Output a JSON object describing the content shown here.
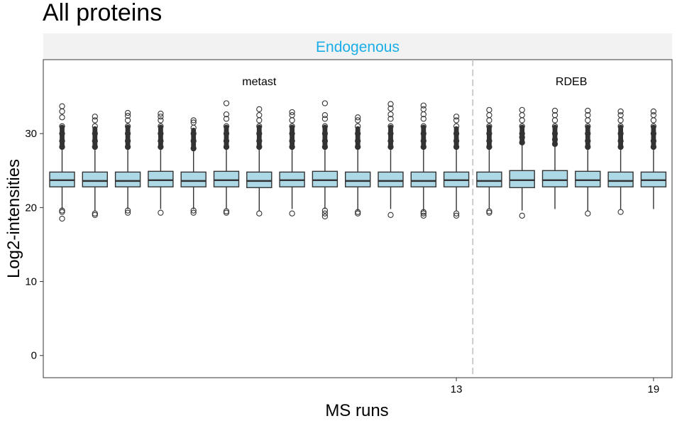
{
  "title": "All proteins",
  "facet_label": "Endogenous",
  "colors": {
    "facet_label_text": "#1aaee8",
    "strip_background": "#f2f2f2",
    "box_fill": "#add8e6",
    "box_stroke": "#333333",
    "divider": "#c0c0c0"
  },
  "chart_data": {
    "type": "boxplot",
    "title": "All proteins",
    "facet": "Endogenous",
    "xlabel": "MS runs",
    "ylabel": "Log2-intensities",
    "ylim": [
      -3,
      40
    ],
    "yticks": [
      0,
      10,
      20,
      30
    ],
    "xtick_labels": [
      {
        "run": 13,
        "label": "13"
      },
      {
        "run": 19,
        "label": "19"
      }
    ],
    "groups": [
      {
        "label": "metast",
        "runs": [
          1,
          13
        ]
      },
      {
        "label": "RDEB",
        "runs": [
          14,
          19
        ]
      }
    ],
    "group_divider_after_run": 13.5,
    "grid": false,
    "runs": [
      {
        "run": 1,
        "q1": 22.8,
        "median": 23.7,
        "q3": 24.8,
        "whisker_low": 19.8,
        "whisker_high": 27.8,
        "outliers_low": [
          19.4,
          19.6,
          18.5
        ],
        "outliers_high": [
          28.2,
          29.0,
          30.0,
          31.0,
          32.2,
          33.0,
          33.7
        ]
      },
      {
        "run": 2,
        "q1": 22.8,
        "median": 23.6,
        "q3": 24.8,
        "whisker_low": 19.6,
        "whisker_high": 27.8,
        "outliers_low": [
          19.2,
          19.0
        ],
        "outliers_high": [
          28.2,
          29.0,
          30.0,
          31.0,
          31.8,
          32.3
        ]
      },
      {
        "run": 3,
        "q1": 22.8,
        "median": 23.6,
        "q3": 24.8,
        "whisker_low": 19.8,
        "whisker_high": 27.8,
        "outliers_low": [
          19.6,
          19.3
        ],
        "outliers_high": [
          28.2,
          29.0,
          30.0,
          31.0,
          31.8,
          32.4,
          32.8
        ]
      },
      {
        "run": 4,
        "q1": 22.8,
        "median": 23.7,
        "q3": 24.9,
        "whisker_low": 19.8,
        "whisker_high": 27.8,
        "outliers_low": [
          19.3
        ],
        "outliers_high": [
          28.2,
          29.0,
          30.0,
          31.0,
          31.8,
          32.3,
          32.7
        ]
      },
      {
        "run": 5,
        "q1": 22.8,
        "median": 23.6,
        "q3": 24.8,
        "whisker_low": 19.8,
        "whisker_high": 27.6,
        "outliers_low": [
          19.6,
          19.3
        ],
        "outliers_high": [
          28.0,
          29.0,
          30.0,
          30.8,
          31.5,
          31.8
        ]
      },
      {
        "run": 6,
        "q1": 22.8,
        "median": 23.7,
        "q3": 24.9,
        "whisker_low": 19.8,
        "whisker_high": 27.8,
        "outliers_low": [
          19.5,
          19.3
        ],
        "outliers_high": [
          28.2,
          29.0,
          30.0,
          31.0,
          32.0,
          32.6,
          34.1
        ]
      },
      {
        "run": 7,
        "q1": 22.7,
        "median": 23.6,
        "q3": 24.8,
        "whisker_low": 19.6,
        "whisker_high": 27.8,
        "outliers_low": [
          19.2
        ],
        "outliers_high": [
          28.2,
          29.0,
          30.0,
          31.0,
          31.8,
          32.5,
          33.3
        ]
      },
      {
        "run": 8,
        "q1": 22.8,
        "median": 23.7,
        "q3": 24.8,
        "whisker_low": 19.8,
        "whisker_high": 27.8,
        "outliers_low": [
          19.2
        ],
        "outliers_high": [
          28.2,
          29.0,
          30.0,
          31.0,
          31.8,
          32.5,
          32.9
        ]
      },
      {
        "run": 9,
        "q1": 22.8,
        "median": 23.7,
        "q3": 24.9,
        "whisker_low": 19.8,
        "whisker_high": 27.8,
        "outliers_low": [
          19.6,
          19.2,
          18.8
        ],
        "outliers_high": [
          28.2,
          29.0,
          30.0,
          31.0,
          32.0,
          32.5,
          34.1
        ]
      },
      {
        "run": 10,
        "q1": 22.8,
        "median": 23.6,
        "q3": 24.8,
        "whisker_low": 19.6,
        "whisker_high": 27.8,
        "outliers_low": [
          19.4,
          19.2
        ],
        "outliers_high": [
          28.2,
          29.0,
          30.0,
          31.0,
          31.8,
          32.2
        ]
      },
      {
        "run": 11,
        "q1": 22.8,
        "median": 23.6,
        "q3": 24.8,
        "whisker_low": 19.8,
        "whisker_high": 27.8,
        "outliers_low": [
          19.0
        ],
        "outliers_high": [
          28.2,
          29.0,
          30.0,
          31.0,
          32.0,
          32.6,
          33.4,
          34.0
        ]
      },
      {
        "run": 12,
        "q1": 22.8,
        "median": 23.6,
        "q3": 24.8,
        "whisker_low": 19.6,
        "whisker_high": 27.8,
        "outliers_low": [
          19.4,
          19.2,
          18.9
        ],
        "outliers_high": [
          28.2,
          29.0,
          30.0,
          31.0,
          32.0,
          32.6,
          33.3,
          33.8
        ]
      },
      {
        "run": 13,
        "q1": 22.8,
        "median": 23.7,
        "q3": 24.8,
        "whisker_low": 19.6,
        "whisker_high": 27.8,
        "outliers_low": [
          19.2,
          18.9
        ],
        "outliers_high": [
          28.2,
          29.0,
          30.0,
          31.0,
          31.8,
          32.3
        ]
      },
      {
        "run": 14,
        "q1": 22.8,
        "median": 23.6,
        "q3": 24.8,
        "whisker_low": 19.8,
        "whisker_high": 27.8,
        "outliers_low": [
          19.5,
          19.3
        ],
        "outliers_high": [
          28.2,
          29.0,
          30.0,
          31.0,
          31.8,
          32.5,
          33.2
        ]
      },
      {
        "run": 15,
        "q1": 22.7,
        "median": 23.7,
        "q3": 25.0,
        "whisker_low": 19.6,
        "whisker_high": 28.4,
        "outliers_low": [
          18.9
        ],
        "outliers_high": [
          28.8,
          29.5,
          30.0,
          31.0,
          31.8,
          32.5,
          33.2
        ]
      },
      {
        "run": 16,
        "q1": 22.8,
        "median": 23.7,
        "q3": 25.0,
        "whisker_low": 19.8,
        "whisker_high": 28.2,
        "outliers_low": [],
        "outliers_high": [
          28.6,
          29.2,
          30.0,
          31.0,
          31.8,
          32.5,
          33.1
        ]
      },
      {
        "run": 17,
        "q1": 22.8,
        "median": 23.7,
        "q3": 24.9,
        "whisker_low": 19.6,
        "whisker_high": 27.8,
        "outliers_low": [
          19.2
        ],
        "outliers_high": [
          28.2,
          29.0,
          30.0,
          31.0,
          31.8,
          32.5,
          33.1
        ]
      },
      {
        "run": 18,
        "q1": 22.8,
        "median": 23.6,
        "q3": 24.8,
        "whisker_low": 19.8,
        "whisker_high": 27.8,
        "outliers_low": [
          19.4
        ],
        "outliers_high": [
          28.2,
          29.0,
          30.0,
          31.0,
          31.8,
          32.5,
          33.0
        ]
      },
      {
        "run": 19,
        "q1": 22.8,
        "median": 23.7,
        "q3": 24.8,
        "whisker_low": 19.8,
        "whisker_high": 27.8,
        "outliers_low": [],
        "outliers_high": [
          28.2,
          29.0,
          30.0,
          31.0,
          31.8,
          32.5,
          33.0
        ]
      }
    ]
  }
}
